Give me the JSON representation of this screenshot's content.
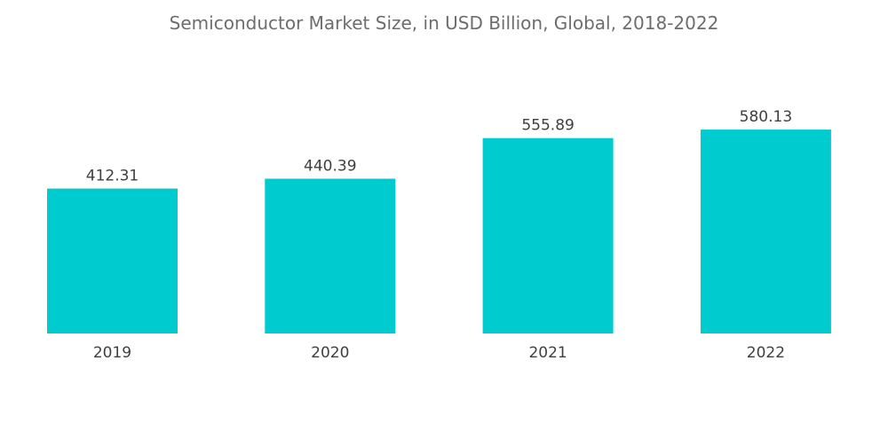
{
  "chart_data": {
    "type": "bar",
    "title": "Semiconductor Market Size, in USD Billion, Global, 2018-2022",
    "xlabel": "",
    "ylabel": "",
    "categories": [
      "2019",
      "2020",
      "2021",
      "2022"
    ],
    "values": [
      412.31,
      440.39,
      555.89,
      580.13
    ],
    "value_labels": [
      "412.31",
      "440.39",
      "555.89",
      "580.13"
    ],
    "bar_color": "#00CCCF",
    "grid": false,
    "legend": "none"
  }
}
